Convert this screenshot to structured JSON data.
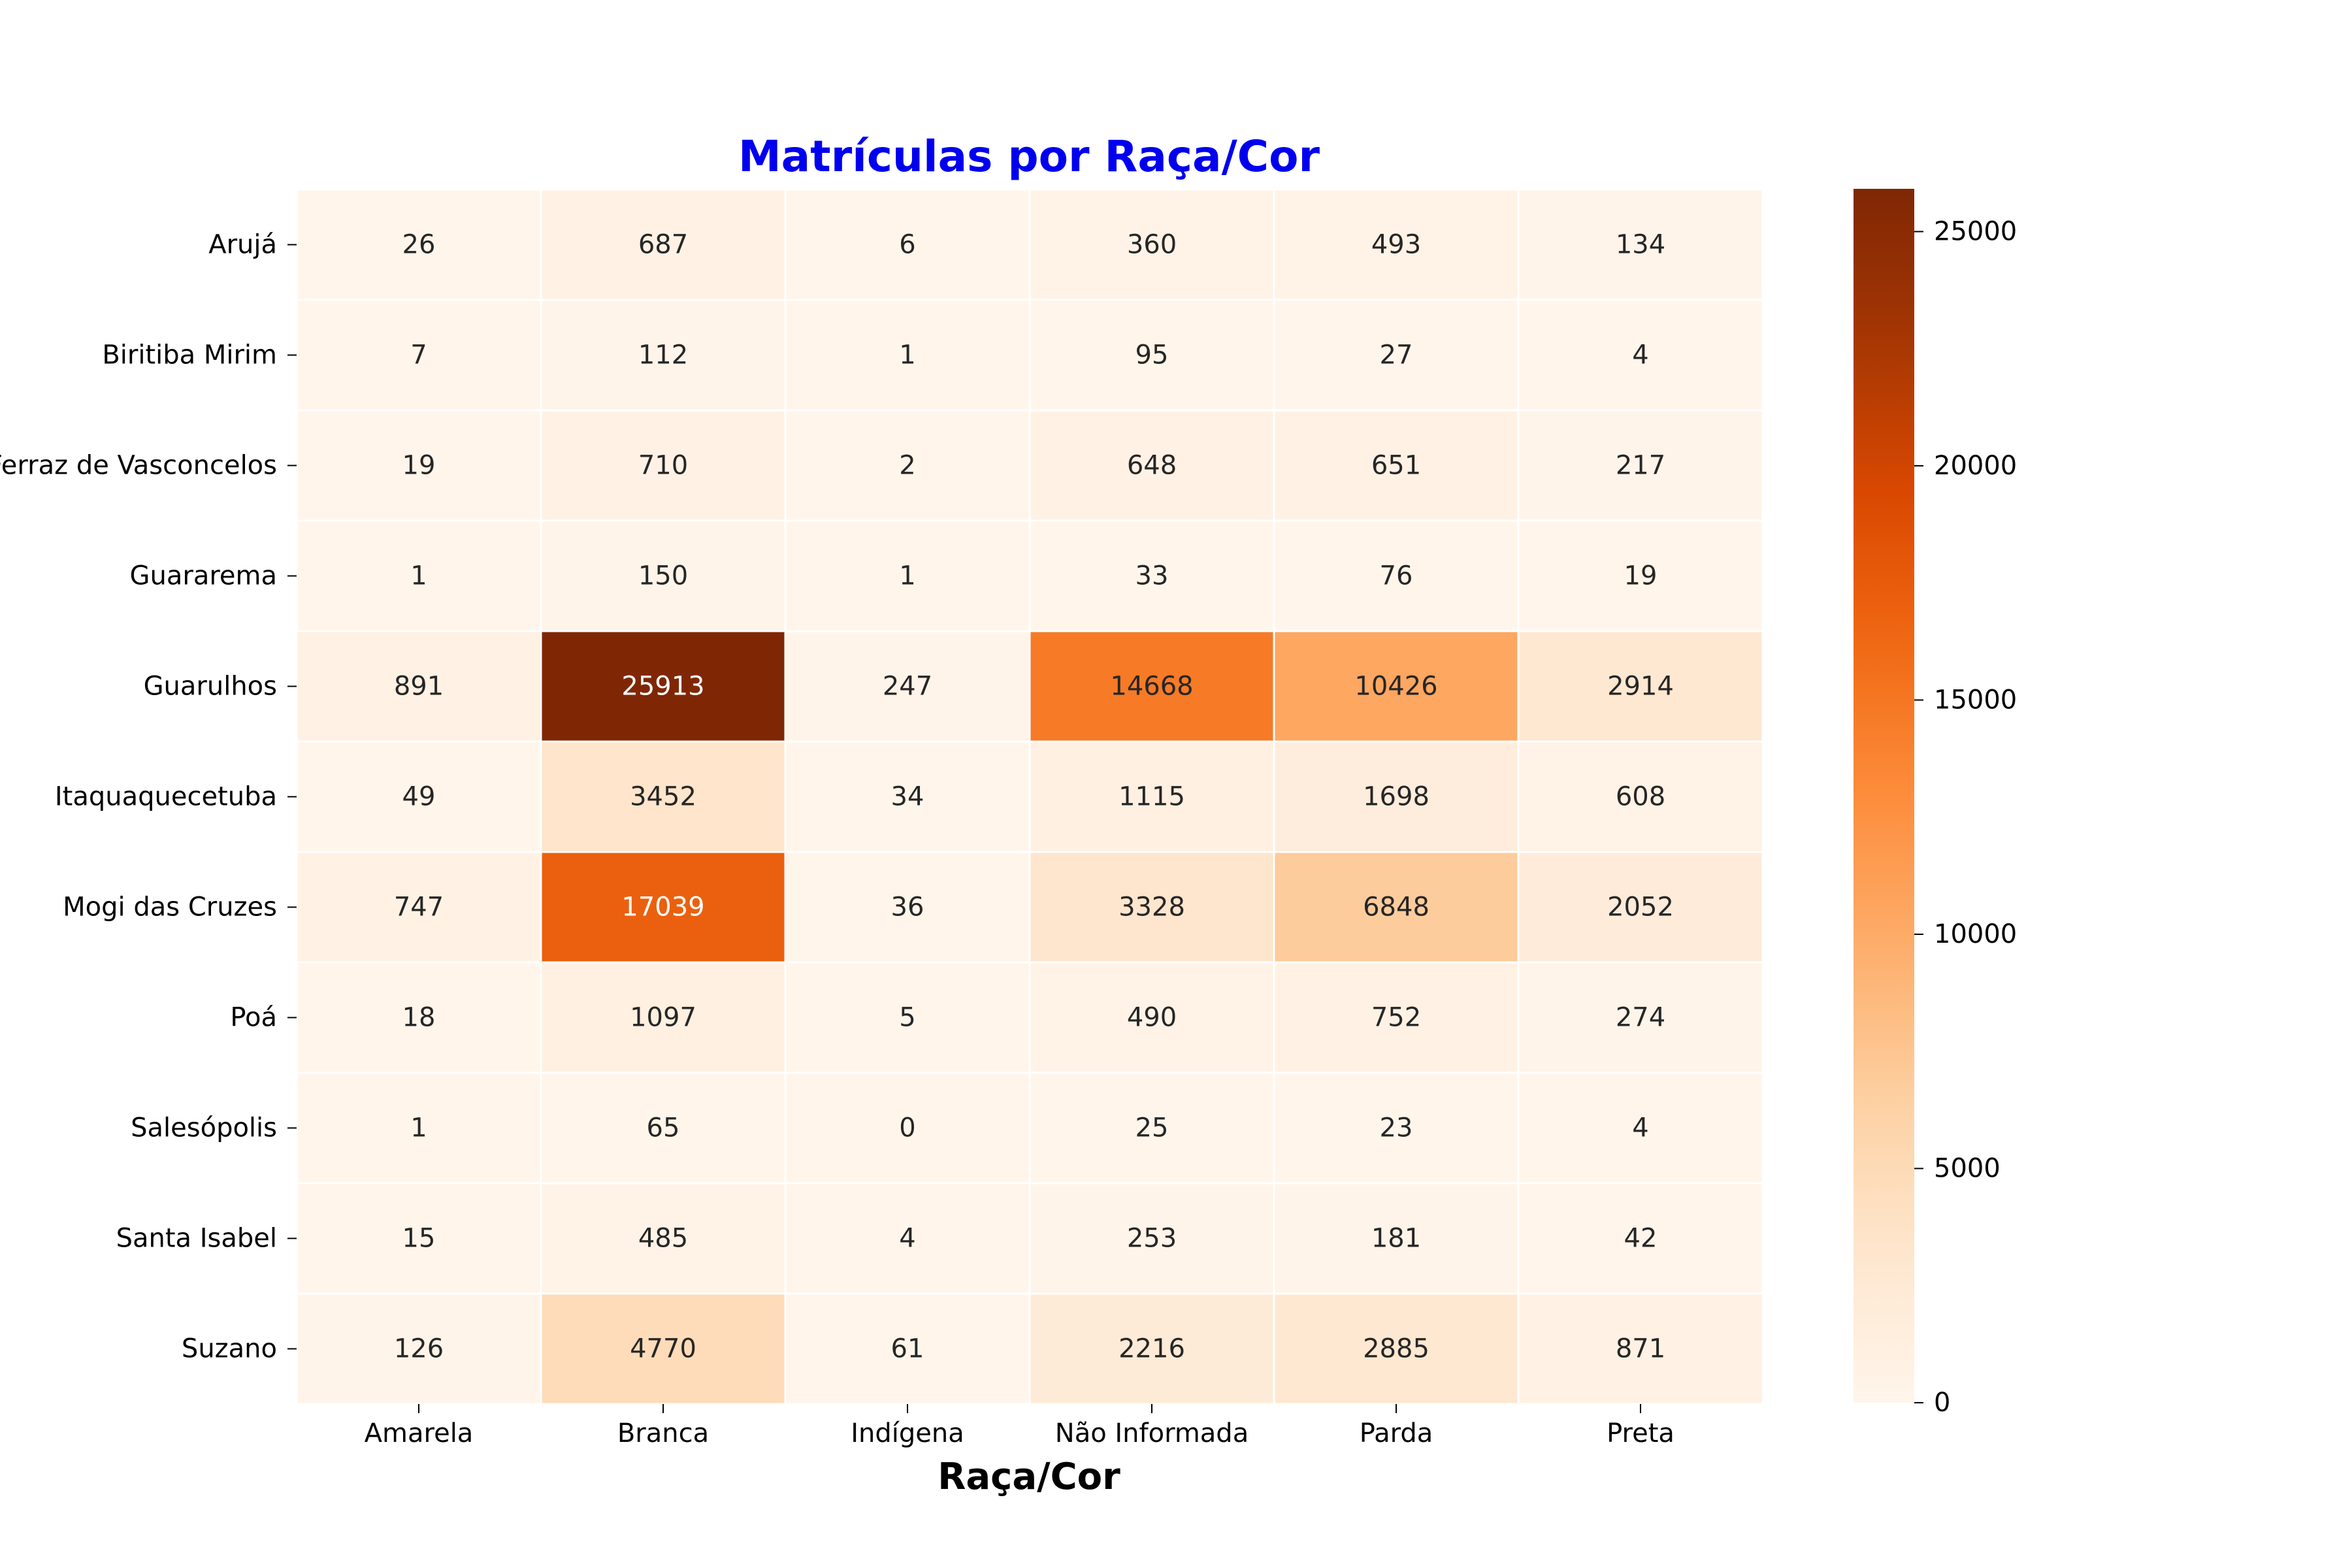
{
  "chart_data": {
    "type": "heatmap",
    "title": "Matrículas por Raça/Cor",
    "title_color": "#0000ee",
    "xlabel": "Raça/Cor",
    "ylabel": "",
    "x_categories": [
      "Amarela",
      "Branca",
      "Indígena",
      "Não Informada",
      "Parda",
      "Preta"
    ],
    "y_categories": [
      "Arujá",
      "Biritiba Mirim",
      "Ferraz de Vasconcelos",
      "Guararema",
      "Guarulhos",
      "Itaquaquecetuba",
      "Mogi das Cruzes",
      "Poá",
      "Salesópolis",
      "Santa Isabel",
      "Suzano"
    ],
    "values": [
      [
        26,
        687,
        6,
        360,
        493,
        134
      ],
      [
        7,
        112,
        1,
        95,
        27,
        4
      ],
      [
        19,
        710,
        2,
        648,
        651,
        217
      ],
      [
        1,
        150,
        1,
        33,
        76,
        19
      ],
      [
        891,
        25913,
        247,
        14668,
        10426,
        2914
      ],
      [
        49,
        3452,
        34,
        1115,
        1698,
        608
      ],
      [
        747,
        17039,
        36,
        3328,
        6848,
        2052
      ],
      [
        18,
        1097,
        5,
        490,
        752,
        274
      ],
      [
        1,
        65,
        0,
        25,
        23,
        4
      ],
      [
        15,
        485,
        4,
        253,
        181,
        42
      ],
      [
        126,
        4770,
        61,
        2216,
        2885,
        871
      ]
    ],
    "colormap": "Oranges",
    "colorbar": {
      "range": [
        0,
        25913
      ],
      "ticks": [
        0,
        5000,
        10000,
        15000,
        20000,
        25000
      ]
    },
    "annotations": true,
    "grid": false
  }
}
